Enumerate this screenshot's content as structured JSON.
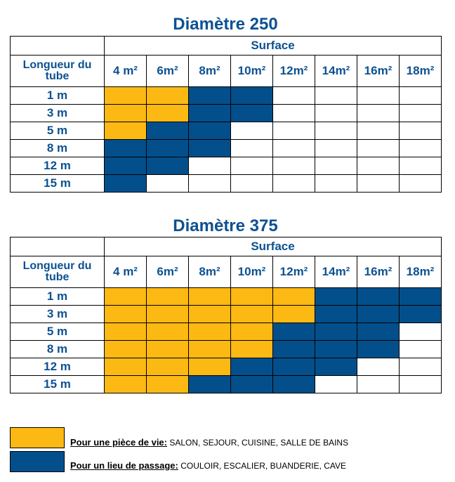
{
  "colors": {
    "vie": "#fdb913",
    "passage": "#034f8c",
    "empty": "#ffffff",
    "text": "#0c5192"
  },
  "header_labels": {
    "longueur": "Longueur du tube",
    "surface": "Surface",
    "surfaces": [
      "4 m²",
      "6m²",
      "8m²",
      "10m²",
      "12m²",
      "14m²",
      "16m²",
      "18m²"
    ]
  },
  "tables": [
    {
      "title": "Diamètre 250",
      "rows": [
        {
          "length": "1 m",
          "cells": [
            "vie",
            "vie",
            "passage",
            "passage",
            "empty",
            "empty",
            "empty",
            "empty"
          ]
        },
        {
          "length": "3 m",
          "cells": [
            "vie",
            "vie",
            "passage",
            "passage",
            "empty",
            "empty",
            "empty",
            "empty"
          ]
        },
        {
          "length": "5 m",
          "cells": [
            "vie",
            "passage",
            "passage",
            "empty",
            "empty",
            "empty",
            "empty",
            "empty"
          ]
        },
        {
          "length": "8 m",
          "cells": [
            "passage",
            "passage",
            "passage",
            "empty",
            "empty",
            "empty",
            "empty",
            "empty"
          ]
        },
        {
          "length": "12 m",
          "cells": [
            "passage",
            "passage",
            "empty",
            "empty",
            "empty",
            "empty",
            "empty",
            "empty"
          ]
        },
        {
          "length": "15 m",
          "cells": [
            "passage",
            "empty",
            "empty",
            "empty",
            "empty",
            "empty",
            "empty",
            "empty"
          ]
        }
      ]
    },
    {
      "title": "Diamètre 375",
      "rows": [
        {
          "length": "1 m",
          "cells": [
            "vie",
            "vie",
            "vie",
            "vie",
            "vie",
            "passage",
            "passage",
            "passage"
          ]
        },
        {
          "length": "3 m",
          "cells": [
            "vie",
            "vie",
            "vie",
            "vie",
            "vie",
            "passage",
            "passage",
            "passage"
          ]
        },
        {
          "length": "5 m",
          "cells": [
            "vie",
            "vie",
            "vie",
            "vie",
            "passage",
            "passage",
            "passage",
            "empty"
          ]
        },
        {
          "length": "8 m",
          "cells": [
            "vie",
            "vie",
            "vie",
            "vie",
            "passage",
            "passage",
            "passage",
            "empty"
          ]
        },
        {
          "length": "12 m",
          "cells": [
            "vie",
            "vie",
            "vie",
            "passage",
            "passage",
            "passage",
            "empty",
            "empty"
          ]
        },
        {
          "length": "15 m",
          "cells": [
            "vie",
            "vie",
            "passage",
            "passage",
            "passage",
            "empty",
            "empty",
            "empty"
          ]
        }
      ]
    }
  ],
  "legend": {
    "vie": {
      "label": "Pour une pièce de vie:",
      "rooms": "SALON,  SEJOUR, CUISINE, SALLE DE BAINS"
    },
    "passage": {
      "label": "Pour un lieu de passage:",
      "rooms": "COULOIR, ESCALIER, BUANDERIE, CAVE"
    }
  }
}
